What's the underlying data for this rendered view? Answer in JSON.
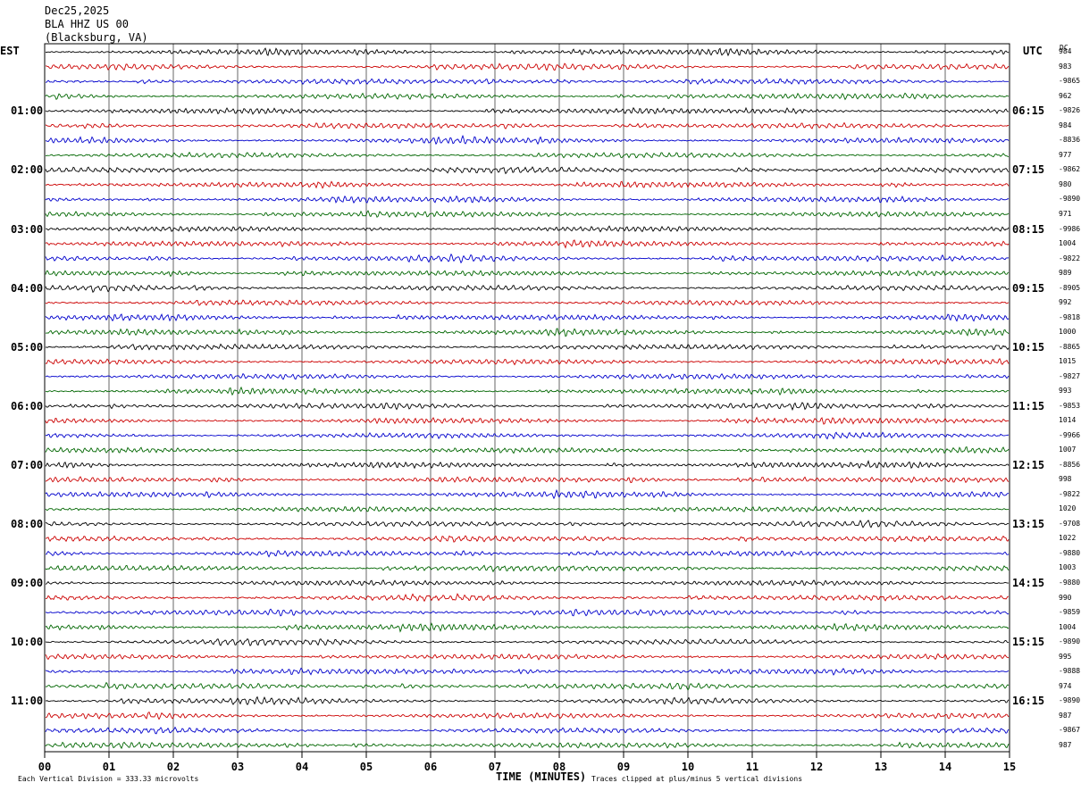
{
  "header": {
    "date": "Dec25,2025",
    "station": "BLA HHZ US 00",
    "location": "(Blacksburg, VA)"
  },
  "labels": {
    "left_tz": "EST",
    "right_tz": "UTC",
    "dc": "DC"
  },
  "colors": [
    "#000000",
    "#cc0000",
    "#0000cc",
    "#006600"
  ],
  "chart_data": {
    "type": "line",
    "title": "BLA HHZ US 00",
    "xlabel": "TIME (MINUTES)",
    "xlim": [
      0,
      15
    ],
    "x_ticks": [
      "00",
      "01",
      "02",
      "03",
      "04",
      "05",
      "06",
      "07",
      "08",
      "09",
      "10",
      "11",
      "12",
      "13",
      "14",
      "15"
    ],
    "trace_count": 48,
    "minutes_per_trace": 15,
    "est_hour_labels": [
      "01:00",
      "02:00",
      "03:00",
      "04:00",
      "05:00",
      "06:00",
      "07:00",
      "08:00",
      "09:00",
      "10:00",
      "11:00"
    ],
    "utc_hour_labels": [
      "06:15",
      "07:15",
      "08:15",
      "09:15",
      "10:15",
      "11:15",
      "12:15",
      "13:15",
      "14:15",
      "15:15",
      "16:15"
    ],
    "dc_offsets": [
      "984",
      "983",
      "-9865",
      "962",
      "-9826",
      "984",
      "-8836",
      "977",
      "-9862",
      "980",
      "-9890",
      "971",
      "-9986",
      "1004",
      "-9822",
      "989",
      "-8905",
      "992",
      "-9818",
      "1000",
      "-8865",
      "1015",
      "-9827",
      "993",
      "-9853",
      "1014",
      "-9966",
      "1007",
      "-8856",
      "998",
      "-9822",
      "1020",
      "-9708",
      "1022",
      "-9880",
      "1003",
      "-9880",
      "990",
      "-9859",
      "1004",
      "-9890",
      "995",
      "-9888",
      "974",
      "-9890",
      "987",
      "-9867",
      "987"
    ]
  },
  "footer": {
    "scale": "Each Vertical Division =  333.33 microvolts",
    "clip": "Traces clipped at plus/minus 5 vertical divisions"
  }
}
